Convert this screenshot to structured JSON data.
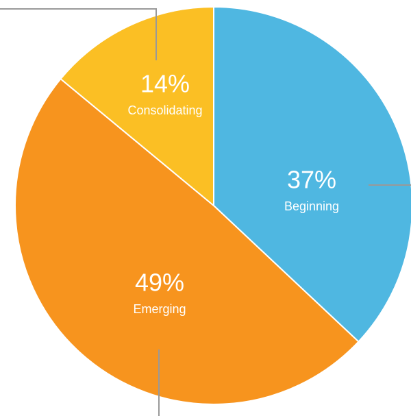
{
  "chart_data": {
    "type": "pie",
    "categories": [
      "Beginning",
      "Emerging",
      "Consolidating"
    ],
    "values": [
      37,
      49,
      14
    ],
    "value_labels": [
      "37%",
      "49%",
      "14%"
    ],
    "colors": [
      "#4fb7e1",
      "#f7941e",
      "#fbbf24"
    ]
  }
}
